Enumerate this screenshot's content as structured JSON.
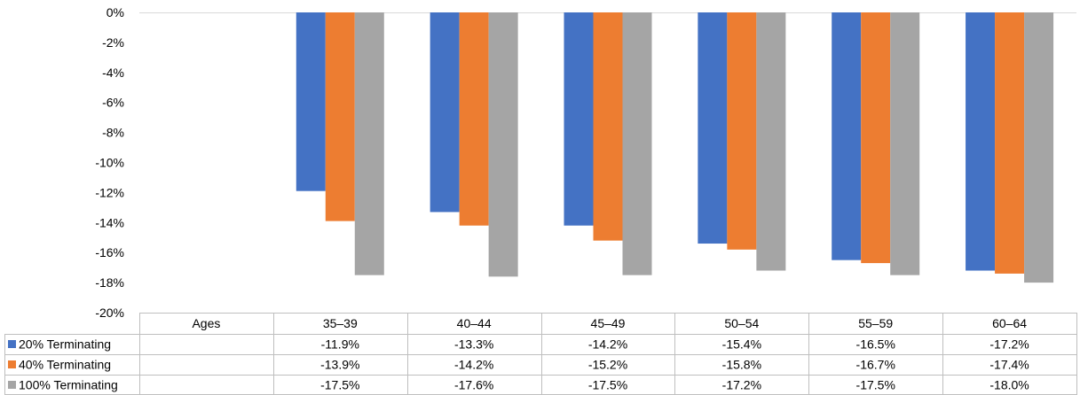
{
  "chart_data": {
    "type": "bar",
    "title": "",
    "xlabel": "",
    "ylabel": "",
    "ylim": [
      -20,
      0
    ],
    "y_ticks": [
      "0%",
      "-2%",
      "-4%",
      "-6%",
      "-8%",
      "-10%",
      "-12%",
      "-14%",
      "-16%",
      "-18%",
      "-20%"
    ],
    "y_tick_values": [
      0,
      -2,
      -4,
      -6,
      -8,
      -10,
      -12,
      -14,
      -16,
      -18,
      -20
    ],
    "grid": false,
    "legend_position": "data-table",
    "table_header": "Ages",
    "categories": [
      "35–39",
      "40–44",
      "45–49",
      "50–54",
      "55–59",
      "60–64"
    ],
    "series": [
      {
        "name": "20% Terminating",
        "color": "#4472C4",
        "values": [
          -11.9,
          -13.3,
          -14.2,
          -15.4,
          -16.5,
          -17.2
        ],
        "labels": [
          "-11.9%",
          "-13.3%",
          "-14.2%",
          "-15.4%",
          "-16.5%",
          "-17.2%"
        ]
      },
      {
        "name": "40% Terminating",
        "color": "#ED7D31",
        "values": [
          -13.9,
          -14.2,
          -15.2,
          -15.8,
          -16.7,
          -17.4
        ],
        "labels": [
          "-13.9%",
          "-14.2%",
          "-15.2%",
          "-15.8%",
          "-16.7%",
          "-17.4%"
        ]
      },
      {
        "name": "100% Terminating",
        "color": "#A5A5A5",
        "values": [
          -17.5,
          -17.6,
          -17.5,
          -17.2,
          -17.5,
          -18.0
        ],
        "labels": [
          "-17.5%",
          "-17.6%",
          "-17.5%",
          "-17.2%",
          "-17.5%",
          "-18.0%"
        ]
      }
    ]
  }
}
